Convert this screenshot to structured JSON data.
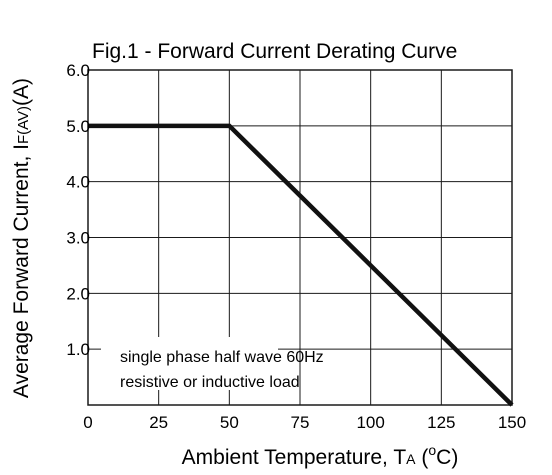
{
  "chart_data": {
    "type": "line",
    "title": "Fig.1 -  Forward Current Derating Curve",
    "xlabel": {
      "main": "Ambient Temperature, T",
      "sub": "A",
      "open": " (",
      "unit": "C",
      "close": ")"
    },
    "ylabel": {
      "main": "Average Forward Current, I",
      "sub": "F(AV)",
      "unit": "(A)"
    },
    "xlim": [
      0,
      150
    ],
    "ylim": [
      0,
      6.0
    ],
    "x_ticks": [
      "0",
      "25",
      "50",
      "75",
      "100",
      "125",
      "150"
    ],
    "x_tick_values": [
      0,
      25,
      50,
      75,
      100,
      125,
      150
    ],
    "y_ticks": [
      "1.0",
      "2.0",
      "3.0",
      "4.0",
      "5.0",
      "6.0"
    ],
    "y_tick_values": [
      1,
      2,
      3,
      4,
      5,
      6
    ],
    "grid": true,
    "series": [
      {
        "x": [
          0,
          50,
          150
        ],
        "y": [
          5.0,
          5.0,
          0.0
        ]
      }
    ],
    "annotation": [
      "single phase half wave 60Hz",
      "resistive or inductive load"
    ]
  }
}
